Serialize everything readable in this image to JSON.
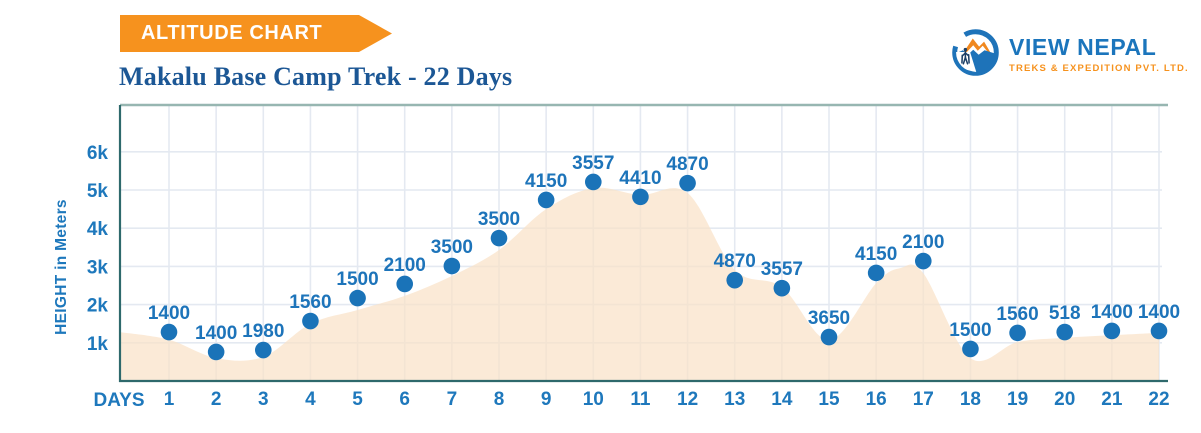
{
  "header": {
    "badge": "ALTITUDE CHART",
    "title": "Makalu Base Camp Trek - 22 Days"
  },
  "brand": {
    "name": "VIEW NEPAL",
    "tagline": "TREKS & EXPEDITION PVT. LTD.",
    "colors": {
      "blue": "#1b75bc",
      "orange": "#f6921e"
    }
  },
  "chart_data": {
    "type": "area",
    "title": "Makalu Base Camp Trek - 22 Days",
    "xlabel": "DAYS",
    "ylabel": "HEIGHT in Meters",
    "grid": true,
    "legend": false,
    "days": [
      1,
      2,
      3,
      4,
      5,
      6,
      7,
      8,
      9,
      10,
      11,
      12,
      13,
      14,
      15,
      16,
      17,
      18,
      19,
      20,
      21,
      22
    ],
    "altitude_labels": [
      "1400",
      "1400",
      "1980",
      "1560",
      "1500",
      "2100",
      "3500",
      "3500",
      "4150",
      "3557",
      "4410",
      "4870",
      "4870",
      "3557",
      "3650",
      "4150",
      "2100",
      "1500",
      "1560",
      "518",
      "1400",
      "1400"
    ],
    "plotted_altitude_m": [
      1280,
      760,
      810,
      1570,
      2170,
      2540,
      3010,
      3740,
      4740,
      5210,
      4820,
      5180,
      2640,
      2430,
      1150,
      2830,
      3140,
      840,
      1260,
      1280,
      1310,
      1310
    ],
    "area_profile": [
      [
        0,
        1280
      ],
      [
        1,
        1080
      ],
      [
        2,
        600
      ],
      [
        3,
        630
      ],
      [
        4,
        1500
      ],
      [
        5,
        1860
      ],
      [
        6,
        2230
      ],
      [
        7,
        2750
      ],
      [
        8,
        3430
      ],
      [
        9,
        4500
      ],
      [
        10,
        5050
      ],
      [
        11,
        4870
      ],
      [
        12,
        4920
      ],
      [
        13,
        2910
      ],
      [
        14,
        2460
      ],
      [
        15,
        1070
      ],
      [
        16,
        2560
      ],
      [
        16.5,
        2950
      ],
      [
        17,
        2820
      ],
      [
        18,
        600
      ],
      [
        19,
        1020
      ],
      [
        20,
        1130
      ],
      [
        21,
        1200
      ],
      [
        22,
        1260
      ]
    ],
    "y_ticks": [
      {
        "label": "1k",
        "m": 1000
      },
      {
        "label": "2k",
        "m": 2000
      },
      {
        "label": "3k",
        "m": 3000
      },
      {
        "label": "4k",
        "m": 4000
      },
      {
        "label": "5k",
        "m": 5000
      },
      {
        "label": "6k",
        "m": 6000
      }
    ],
    "ylim_m": [
      0,
      7200
    ],
    "colors": {
      "dot": "#1a73b8",
      "point_label": "#1d74ba",
      "area_fill": "#fae1c6",
      "area_fill_opacity": "0.7",
      "grid_line": "#e4e9f1",
      "axis_line": "#2e696c",
      "top_border": "#97b6b1",
      "tick_text": "#1e78bc"
    }
  }
}
